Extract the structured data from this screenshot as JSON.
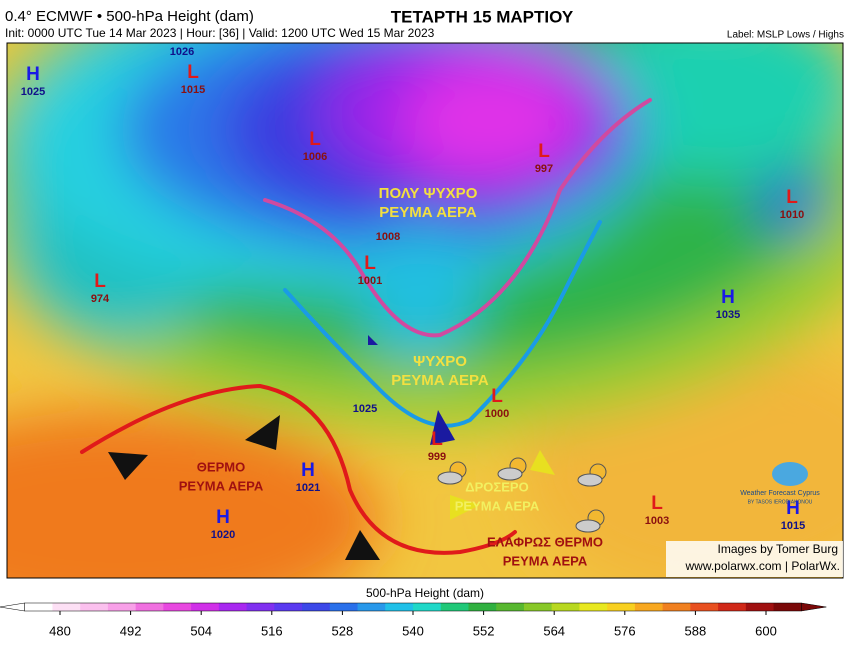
{
  "header": {
    "product": "0.4° ECMWF • 500-hPa Height (dam)",
    "init": "Init: 0000 UTC Tue 14 Mar 2023 | Hour: [36] | Valid: 1200 UTC Wed 15 Mar 2023",
    "title": "ΤΕΤΑΡΤΗ 15 ΜΑΡΤΙΟΥ",
    "label_note": "Label: MSLP Lows / Highs"
  },
  "centers": [
    {
      "letter": "H",
      "value": 1025
    },
    {
      "value": 1026
    },
    {
      "letter": "L",
      "value": 1015
    },
    {
      "letter": "L",
      "value": 1006
    },
    {
      "letter": "L",
      "value": 997
    },
    {
      "letter": "L",
      "value": 1010
    },
    {
      "letter": "L",
      "value": 974
    },
    {
      "value": 1008
    },
    {
      "letter": "L",
      "value": 1001
    },
    {
      "letter": "H",
      "value": 1035
    },
    {
      "value": 1025
    },
    {
      "letter": "L",
      "value": 1000
    },
    {
      "letter": "L",
      "value": 999
    },
    {
      "letter": "H",
      "value": 1021
    },
    {
      "letter": "H",
      "value": 1020
    },
    {
      "letter": "L",
      "value": 1003
    },
    {
      "letter": "H",
      "value": 1015
    }
  ],
  "annotations": [
    [
      "ΠΟΛΥ ΨΥΧΡΟ",
      "ΡΕΥΜΑ ΑΕΡΑ"
    ],
    [
      "ΨΥΧΡΟ",
      "ΡΕΥΜΑ ΑΕΡΑ"
    ],
    [
      "ΘΕΡΜΟ",
      "ΡΕΥΜΑ ΑΕΡΑ"
    ],
    [
      "ΔΡΟΣΕΡΟ",
      "ΡΕΥΜΑ ΑΕΡΑ"
    ],
    [
      "ΕΛΑΦΡΩΣ ΘΕΡΜΟ",
      "ΡΕΥΜΑ ΑΕΡΑ"
    ]
  ],
  "logo": {
    "name": "Weather Forecast Cyprus",
    "author": "BY TASOS IERODIAKONOU"
  },
  "credits": {
    "images": "Images by Tomer Burg",
    "site": "www.polarwx.com | PolarWx."
  },
  "colorbar": {
    "label": "500-hPa Height (dam)",
    "ticks": [
      480,
      492,
      504,
      516,
      528,
      540,
      552,
      564,
      576,
      588,
      600
    ]
  }
}
